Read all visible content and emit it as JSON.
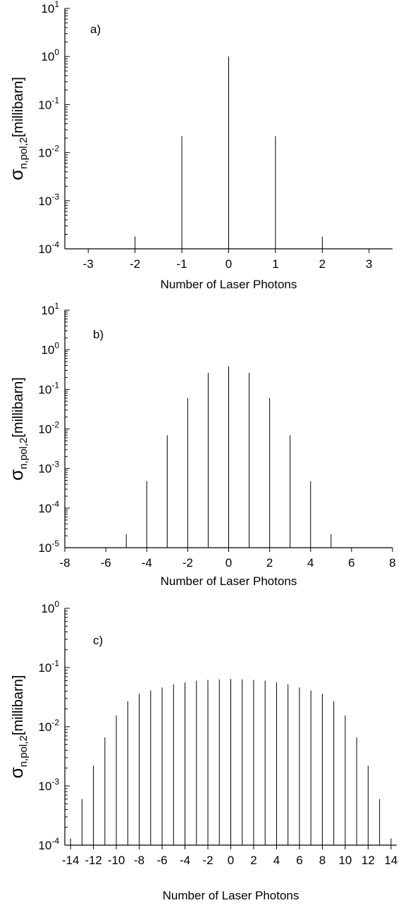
{
  "chart_data": [
    {
      "type": "bar",
      "panel_label": "a)",
      "xlabel": "Number of Laser Photons",
      "ylabel": "σn,pol,2[millibarn]",
      "yscale": "log",
      "xlim": [
        -3.5,
        3.5
      ],
      "ylim": [
        0.0001,
        10
      ],
      "xticks": [
        -3,
        -2,
        -1,
        0,
        1,
        2,
        3
      ],
      "ytick_exponents": [
        -4,
        -3,
        -2,
        -1,
        0,
        1
      ],
      "x": [
        -2,
        -1,
        0,
        1,
        2
      ],
      "values": [
        0.00018,
        0.022,
        1.0,
        0.022,
        0.00018
      ]
    },
    {
      "type": "bar",
      "panel_label": "b)",
      "xlabel": "Number of Laser Photons",
      "ylabel": "σn,pol,2[millibarn]",
      "yscale": "log",
      "xlim": [
        -8,
        8
      ],
      "ylim": [
        1e-05,
        10
      ],
      "xticks": [
        -8,
        -6,
        -4,
        -2,
        0,
        2,
        4,
        6,
        8
      ],
      "ytick_exponents": [
        -5,
        -4,
        -3,
        -2,
        -1,
        0,
        1
      ],
      "x": [
        -5,
        -4,
        -3,
        -2,
        -1,
        0,
        1,
        2,
        3,
        4,
        5
      ],
      "values": [
        2.2e-05,
        0.00048,
        0.0069,
        0.06,
        0.26,
        0.38,
        0.26,
        0.06,
        0.0069,
        0.00048,
        2.2e-05
      ]
    },
    {
      "type": "bar",
      "panel_label": "c)",
      "xlabel": "Number of Laser Photons",
      "ylabel": "σn,pol,2[millibarn]",
      "yscale": "log",
      "xlim": [
        -14.5,
        14.5
      ],
      "ylim": [
        0.0001,
        1
      ],
      "xticks": [
        -14,
        -12,
        -10,
        -8,
        -6,
        -4,
        -2,
        0,
        2,
        4,
        6,
        8,
        10,
        12,
        14
      ],
      "ytick_exponents": [
        -4,
        -3,
        -2,
        -1,
        0
      ],
      "x": [
        -14,
        -13,
        -12,
        -11,
        -10,
        -9,
        -8,
        -7,
        -6,
        -5,
        -4,
        -3,
        -2,
        -1,
        0,
        1,
        2,
        3,
        4,
        5,
        6,
        7,
        8,
        9,
        10,
        11,
        12,
        13,
        14
      ],
      "values": [
        0.00013,
        0.0006,
        0.0022,
        0.0066,
        0.0155,
        0.027,
        0.036,
        0.041,
        0.046,
        0.052,
        0.056,
        0.06,
        0.062,
        0.063,
        0.064,
        0.063,
        0.062,
        0.06,
        0.056,
        0.052,
        0.046,
        0.041,
        0.036,
        0.027,
        0.0155,
        0.0066,
        0.0022,
        0.0006,
        0.00013
      ]
    }
  ]
}
